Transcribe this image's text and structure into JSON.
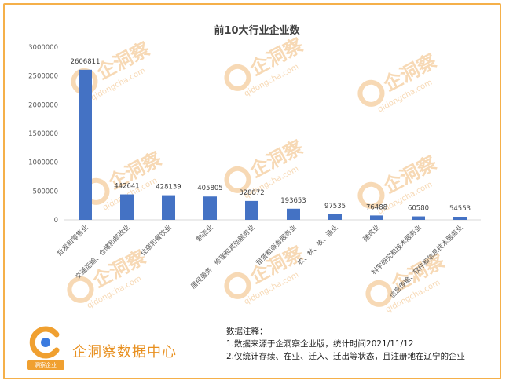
{
  "chart_data": {
    "type": "bar",
    "title": "前10大行业企业数",
    "categories": [
      "批发和零售业",
      "交通运输、仓储和邮政业",
      "住宿和餐饮业",
      "制造业",
      "居民服务、修理和其他服务业",
      "租赁和商务服务业",
      "农、林、牧、渔业",
      "建筑业",
      "科学研究和技术服务业",
      "信息传输、软件和信息技术服务业"
    ],
    "values": [
      2606811,
      442641,
      428139,
      405805,
      328872,
      193653,
      97535,
      76488,
      60580,
      54553
    ],
    "value_labels": [
      "2606811",
      "442641",
      "428139",
      "405805",
      "328872",
      "193653",
      "97535",
      "76488",
      "60580",
      "54553"
    ],
    "y_ticks": [
      "0",
      "500000",
      "1000000",
      "1500000",
      "2000000",
      "2500000",
      "3000000"
    ],
    "ylim": [
      0,
      3000000
    ],
    "bar_color": "#4472c4",
    "grid": false,
    "legend": "none"
  },
  "watermark": {
    "text": "企洞察",
    "subtext": "qidongcha.com",
    "color": "#f7d9b5"
  },
  "footer": {
    "brand": "企洞察数据中心",
    "badge": "洞察企业",
    "brand_color": "#e89020",
    "notes_title": "数据注释：",
    "note1": "1.数据来源于企洞察企业版，统计时间2021/11/12",
    "note2": "2.仅统计存续、在业、迁入、迁出等状态，且注册地在辽宁的企业"
  }
}
